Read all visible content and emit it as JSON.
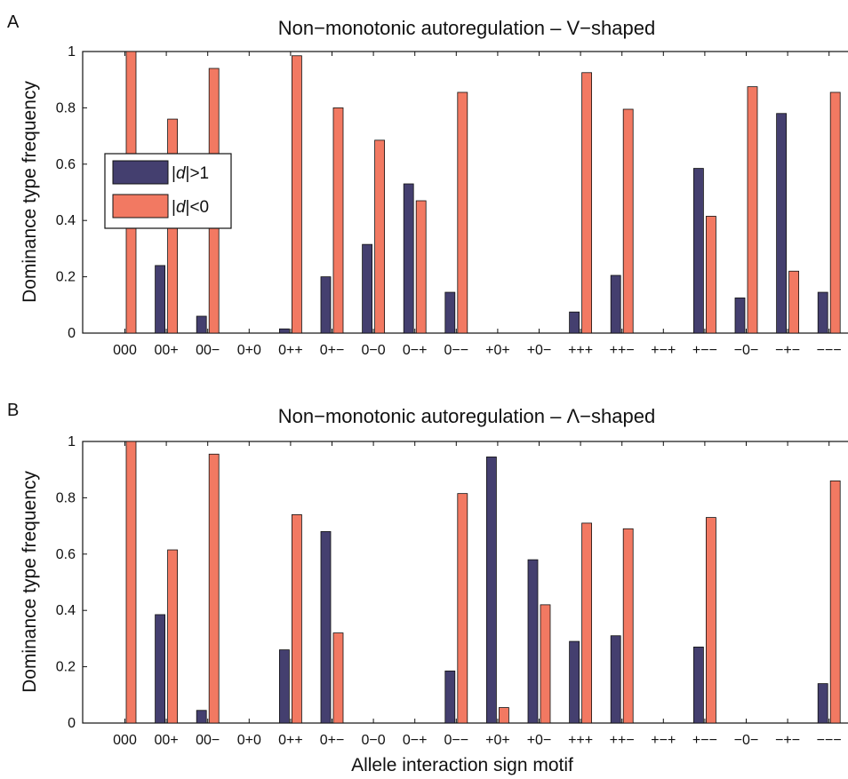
{
  "figure": {
    "xlabel": "Allele interaction sign motif",
    "ylabel": "Dominance type frequency"
  },
  "colors": {
    "d_gt_1": "#443f6f",
    "d_lt_0": "#f27962",
    "axis": "#111111",
    "background": "#ffffff"
  },
  "legend": {
    "position": "upper-left",
    "entries": [
      {
        "series": "d_gt_1",
        "prefix": "|",
        "italic": "d",
        "suffix": "|>1"
      },
      {
        "series": "d_lt_0",
        "prefix": "|",
        "italic": "d",
        "suffix": "|<0"
      }
    ]
  },
  "chart_data": [
    {
      "panel": "A",
      "type": "bar",
      "title": "Non−monotonic autoregulation – V−shaped",
      "ylabel": "Dominance type frequency",
      "xlabel": "",
      "ylim": [
        0,
        1
      ],
      "yticks": [
        "0",
        "0.2",
        "0.4",
        "0.6",
        "0.8",
        "1"
      ],
      "categories": [
        "000",
        "00+",
        "00−",
        "0+0",
        "0++",
        "0+−",
        "0−0",
        "0−+",
        "0−−",
        "+0+",
        "+0−",
        "+++",
        "++−",
        "+−+",
        "+−−",
        "−0−",
        "−+−",
        "−−−"
      ],
      "series": [
        {
          "key": "d_gt_1",
          "name": "|d|>1",
          "values": [
            0,
            0.24,
            0.06,
            0,
            0.015,
            0.2,
            0.315,
            0.53,
            0.145,
            0,
            0,
            0.075,
            0.205,
            0,
            0.585,
            0.125,
            0.78,
            0.145
          ]
        },
        {
          "key": "d_lt_0",
          "name": "|d|<0",
          "values": [
            1.0,
            0.76,
            0.94,
            0,
            0.985,
            0.8,
            0.685,
            0.47,
            0.855,
            0,
            0,
            0.925,
            0.795,
            0,
            0.415,
            0.875,
            0.22,
            0.855
          ]
        }
      ],
      "legend": true,
      "grid": false
    },
    {
      "panel": "B",
      "type": "bar",
      "title": "Non−monotonic autoregulation – Λ−shaped",
      "ylabel": "Dominance type frequency",
      "xlabel": "Allele interaction sign motif",
      "ylim": [
        0,
        1
      ],
      "yticks": [
        "0",
        "0.2",
        "0.4",
        "0.6",
        "0.8",
        "1"
      ],
      "categories": [
        "000",
        "00+",
        "00−",
        "0+0",
        "0++",
        "0+−",
        "0−0",
        "0−+",
        "0−−",
        "+0+",
        "+0−",
        "+++",
        "++−",
        "+−+",
        "+−−",
        "−0−",
        "−+−",
        "−−−"
      ],
      "series": [
        {
          "key": "d_gt_1",
          "name": "|d|>1",
          "values": [
            0,
            0.385,
            0.045,
            0,
            0.26,
            0.68,
            0,
            0,
            0.185,
            0.945,
            0.58,
            0.29,
            0.31,
            0,
            0.27,
            0,
            0,
            0.14
          ]
        },
        {
          "key": "d_lt_0",
          "name": "|d|<0",
          "values": [
            1.0,
            0.615,
            0.955,
            0,
            0.74,
            0.32,
            0,
            0,
            0.815,
            0.055,
            0.42,
            0.71,
            0.69,
            0,
            0.73,
            0,
            0,
            0.86
          ]
        }
      ],
      "legend": false,
      "grid": false
    }
  ]
}
